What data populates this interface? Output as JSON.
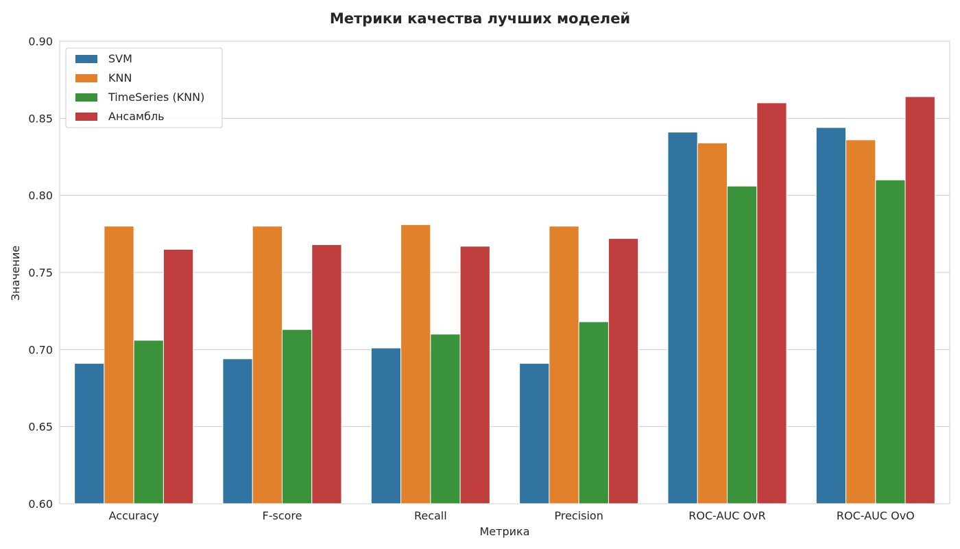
{
  "chart_data": {
    "type": "bar",
    "title": "Метрики качества лучших моделей",
    "xlabel": "Метрика",
    "ylabel": "Значение",
    "ylim": [
      0.6,
      0.9
    ],
    "yticks": [
      "0.60",
      "0.65",
      "0.70",
      "0.75",
      "0.80",
      "0.85",
      "0.90"
    ],
    "grid": true,
    "legend_position": "top-left",
    "categories": [
      "Accuracy",
      "F-score",
      "Recall",
      "Precision",
      "ROC-AUC OvR",
      "ROC-AUC OvO"
    ],
    "series": [
      {
        "name": "SVM",
        "color": "#3274a1",
        "values": [
          0.691,
          0.694,
          0.701,
          0.691,
          0.841,
          0.844
        ]
      },
      {
        "name": "KNN",
        "color": "#e1812c",
        "values": [
          0.78,
          0.78,
          0.781,
          0.78,
          0.834,
          0.836
        ]
      },
      {
        "name": "TimeSeries (KNN)",
        "color": "#3a923a",
        "values": [
          0.706,
          0.713,
          0.71,
          0.718,
          0.806,
          0.81
        ]
      },
      {
        "name": "Ансамбль",
        "color": "#c03d3e",
        "values": [
          0.765,
          0.768,
          0.767,
          0.772,
          0.86,
          0.864
        ]
      }
    ]
  }
}
